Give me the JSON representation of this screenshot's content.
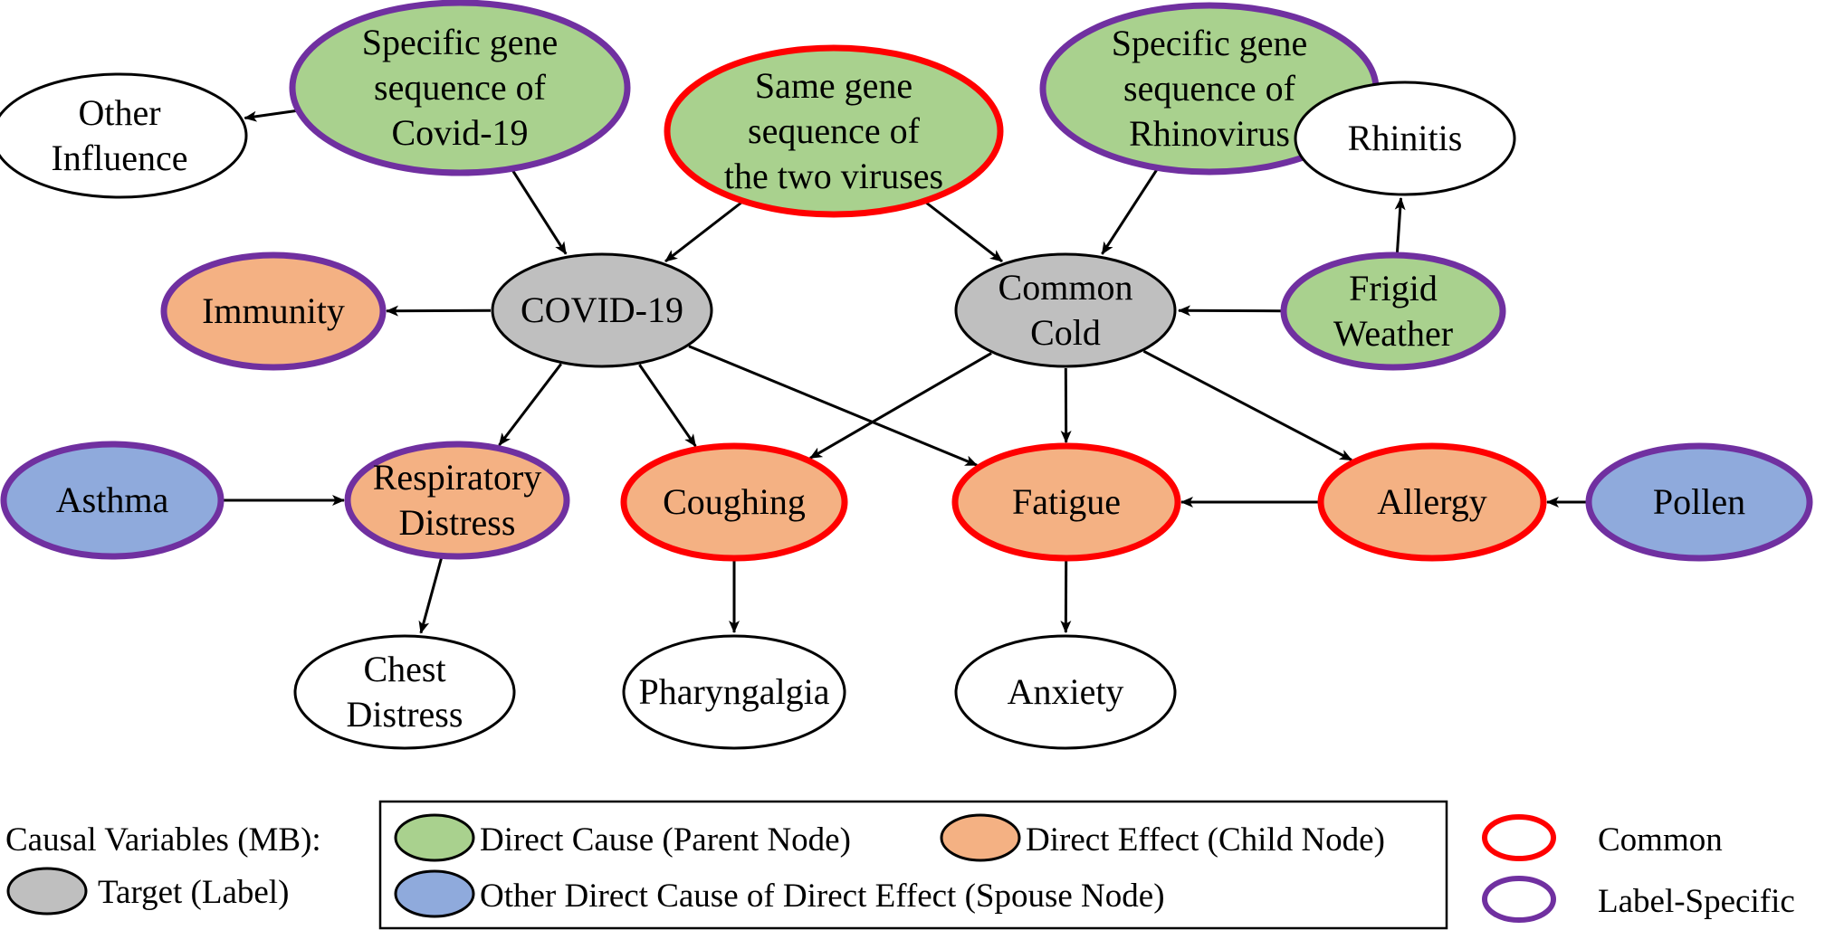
{
  "colors": {
    "direct_cause_fill": "#a9d18e",
    "direct_effect_fill": "#f4b183",
    "spouse_fill": "#8faadc",
    "target_fill": "#bfbfbf",
    "plain_fill": "#ffffff",
    "common_border": "#ff0000",
    "label_specific_border": "#7030a0",
    "plain_border": "#000000"
  },
  "nodes": [
    {
      "id": "other-influence",
      "lines": [
        "Other",
        "Influence"
      ],
      "fill": "plain",
      "border": "plain"
    },
    {
      "id": "gene-covid",
      "lines": [
        "Specific gene",
        "sequence of",
        "Covid-19"
      ],
      "fill": "direct_cause",
      "border": "label_specific"
    },
    {
      "id": "gene-same",
      "lines": [
        "Same gene",
        "sequence of",
        "the two viruses"
      ],
      "fill": "direct_cause",
      "border": "common"
    },
    {
      "id": "gene-rhino",
      "lines": [
        "Specific gene",
        "sequence of",
        "Rhinovirus"
      ],
      "fill": "direct_cause",
      "border": "label_specific"
    },
    {
      "id": "rhinitis",
      "lines": [
        "Rhinitis"
      ],
      "fill": "plain",
      "border": "plain"
    },
    {
      "id": "immunity",
      "lines": [
        "Immunity"
      ],
      "fill": "direct_effect",
      "border": "label_specific"
    },
    {
      "id": "covid19",
      "lines": [
        "COVID-19"
      ],
      "fill": "target",
      "border": "plain"
    },
    {
      "id": "common-cold",
      "lines": [
        "Common",
        "Cold"
      ],
      "fill": "target",
      "border": "plain"
    },
    {
      "id": "frigid-weather",
      "lines": [
        "Frigid",
        "Weather"
      ],
      "fill": "direct_cause",
      "border": "label_specific"
    },
    {
      "id": "asthma",
      "lines": [
        "Asthma"
      ],
      "fill": "spouse",
      "border": "label_specific"
    },
    {
      "id": "respiratory-distress",
      "lines": [
        "Respiratory",
        "Distress"
      ],
      "fill": "direct_effect",
      "border": "label_specific"
    },
    {
      "id": "coughing",
      "lines": [
        "Coughing"
      ],
      "fill": "direct_effect",
      "border": "common"
    },
    {
      "id": "fatigue",
      "lines": [
        "Fatigue"
      ],
      "fill": "direct_effect",
      "border": "common"
    },
    {
      "id": "allergy",
      "lines": [
        "Allergy"
      ],
      "fill": "direct_effect",
      "border": "common"
    },
    {
      "id": "pollen",
      "lines": [
        "Pollen"
      ],
      "fill": "spouse",
      "border": "label_specific"
    },
    {
      "id": "chest-distress",
      "lines": [
        "Chest",
        "Distress"
      ],
      "fill": "plain",
      "border": "plain"
    },
    {
      "id": "pharyngalgia",
      "lines": [
        "Pharyngalgia"
      ],
      "fill": "plain",
      "border": "plain"
    },
    {
      "id": "anxiety",
      "lines": [
        "Anxiety"
      ],
      "fill": "plain",
      "border": "plain"
    }
  ],
  "edges": [
    {
      "from": "gene-covid",
      "to": "other-influence"
    },
    {
      "from": "gene-covid",
      "to": "covid19"
    },
    {
      "from": "gene-same",
      "to": "covid19"
    },
    {
      "from": "gene-same",
      "to": "common-cold"
    },
    {
      "from": "gene-rhino",
      "to": "common-cold"
    },
    {
      "from": "gene-rhino",
      "to": "rhinitis"
    },
    {
      "from": "frigid-weather",
      "to": "rhinitis"
    },
    {
      "from": "frigid-weather",
      "to": "common-cold"
    },
    {
      "from": "covid19",
      "to": "immunity"
    },
    {
      "from": "covid19",
      "to": "respiratory-distress"
    },
    {
      "from": "covid19",
      "to": "coughing"
    },
    {
      "from": "covid19",
      "to": "fatigue"
    },
    {
      "from": "common-cold",
      "to": "coughing"
    },
    {
      "from": "common-cold",
      "to": "fatigue"
    },
    {
      "from": "common-cold",
      "to": "allergy"
    },
    {
      "from": "asthma",
      "to": "respiratory-distress"
    },
    {
      "from": "allergy",
      "to": "fatigue"
    },
    {
      "from": "pollen",
      "to": "allergy"
    },
    {
      "from": "respiratory-distress",
      "to": "chest-distress"
    },
    {
      "from": "coughing",
      "to": "pharyngalgia"
    },
    {
      "from": "fatigue",
      "to": "anxiety"
    }
  ],
  "legend": {
    "causal_variables_label": "Causal Variables (MB):",
    "target_label": "Target (Label)",
    "direct_cause_label": "Direct Cause (Parent Node)",
    "direct_effect_label": "Direct Effect (Child Node)",
    "spouse_label": "Other Direct Cause of Direct Effect (Spouse Node)",
    "common_label": "Common",
    "label_specific_label": "Label-Specific"
  }
}
